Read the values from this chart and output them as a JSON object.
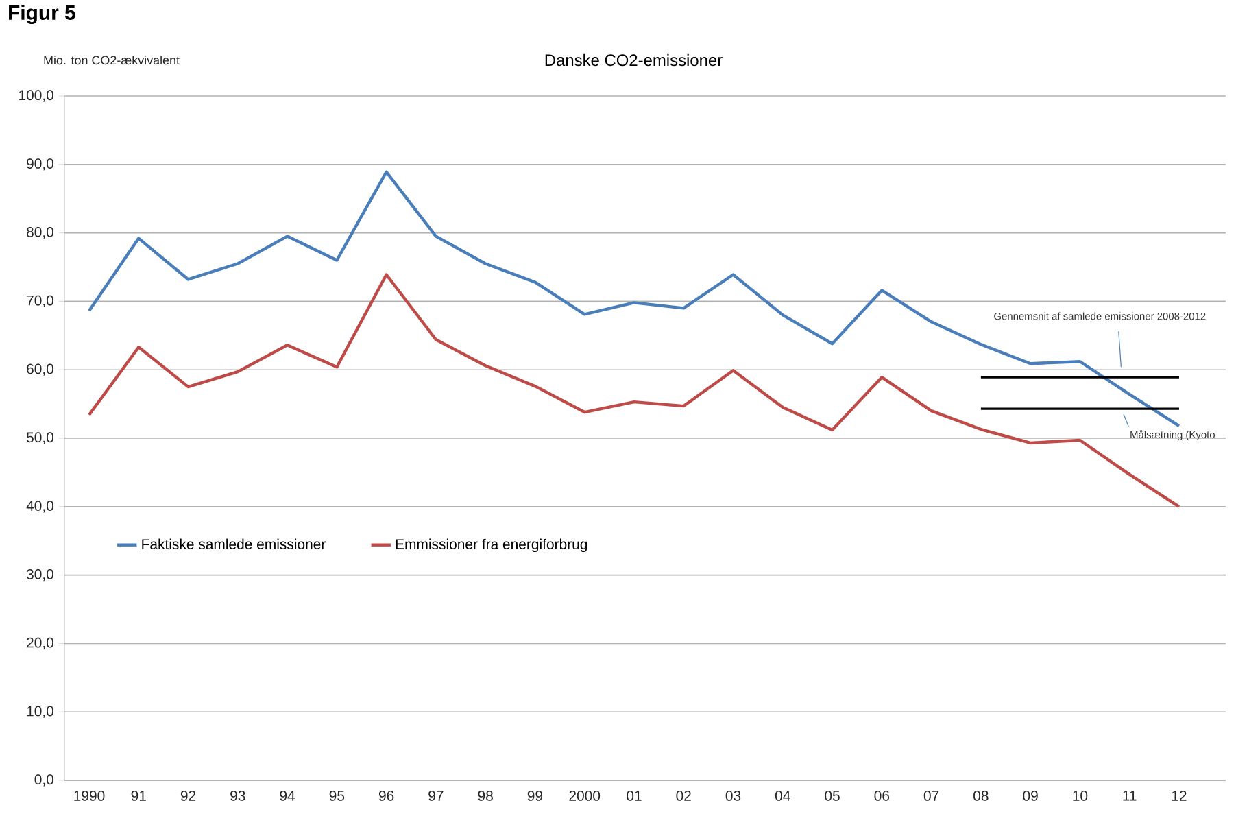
{
  "chart_data": {
    "type": "line",
    "title": "Danske CO2-emissioner",
    "ylabel": "Mio. ton CO2-ækvivalent",
    "annotations": [
      "Figur 5"
    ],
    "categories": [
      "1990",
      "91",
      "92",
      "93",
      "94",
      "95",
      "96",
      "97",
      "98",
      "99",
      "2000",
      "01",
      "02",
      "03",
      "04",
      "05",
      "06",
      "07",
      "08",
      "09",
      "10",
      "11",
      "12"
    ],
    "series": [
      {
        "name": "Faktiske samlede emissioner",
        "color": "#4a7ebb",
        "values": [
          68.6,
          79.2,
          73.2,
          75.5,
          79.5,
          76.0,
          88.9,
          79.5,
          75.5,
          72.8,
          68.1,
          69.8,
          69.0,
          73.9,
          68.0,
          63.8,
          71.6,
          67.0,
          63.7,
          60.9,
          61.2,
          56.4,
          51.8
        ]
      },
      {
        "name": "Emmissioner fra energiforbrug",
        "color": "#be4b48",
        "values": [
          53.4,
          63.3,
          57.5,
          59.7,
          63.6,
          60.4,
          73.9,
          64.4,
          60.6,
          57.6,
          53.8,
          55.3,
          54.7,
          59.9,
          54.5,
          51.2,
          58.9,
          54.0,
          51.3,
          49.3,
          49.7,
          44.7,
          40.0
        ]
      },
      {
        "name": "Gennemsnit af samlede emissioner 2008-2012",
        "color": "#000000",
        "x": [
          "08",
          "09",
          "10",
          "11",
          "12"
        ],
        "values": [
          58.9,
          58.9,
          58.9,
          58.9,
          58.9
        ]
      },
      {
        "name": "Målsætning (Kyoto",
        "color": "#000000",
        "x": [
          "08",
          "09",
          "10",
          "11",
          "12"
        ],
        "values": [
          54.3,
          54.3,
          54.3,
          54.3,
          54.3
        ]
      }
    ],
    "ylim": [
      0,
      100
    ],
    "yticks": [
      {
        "value": 0,
        "label": "0,0"
      },
      {
        "value": 10,
        "label": "10,0"
      },
      {
        "value": 20,
        "label": "20,0"
      },
      {
        "value": 30,
        "label": "30,0"
      },
      {
        "value": 40,
        "label": "40,0"
      },
      {
        "value": 50,
        "label": "50,0"
      },
      {
        "value": 60,
        "label": "60,0"
      },
      {
        "value": 70,
        "label": "70,0"
      },
      {
        "value": 80,
        "label": "80,0"
      },
      {
        "value": 90,
        "label": "90,0"
      },
      {
        "value": 100,
        "label": "100,0"
      }
    ],
    "grid": "y",
    "legend": "left",
    "marker": "none"
  }
}
